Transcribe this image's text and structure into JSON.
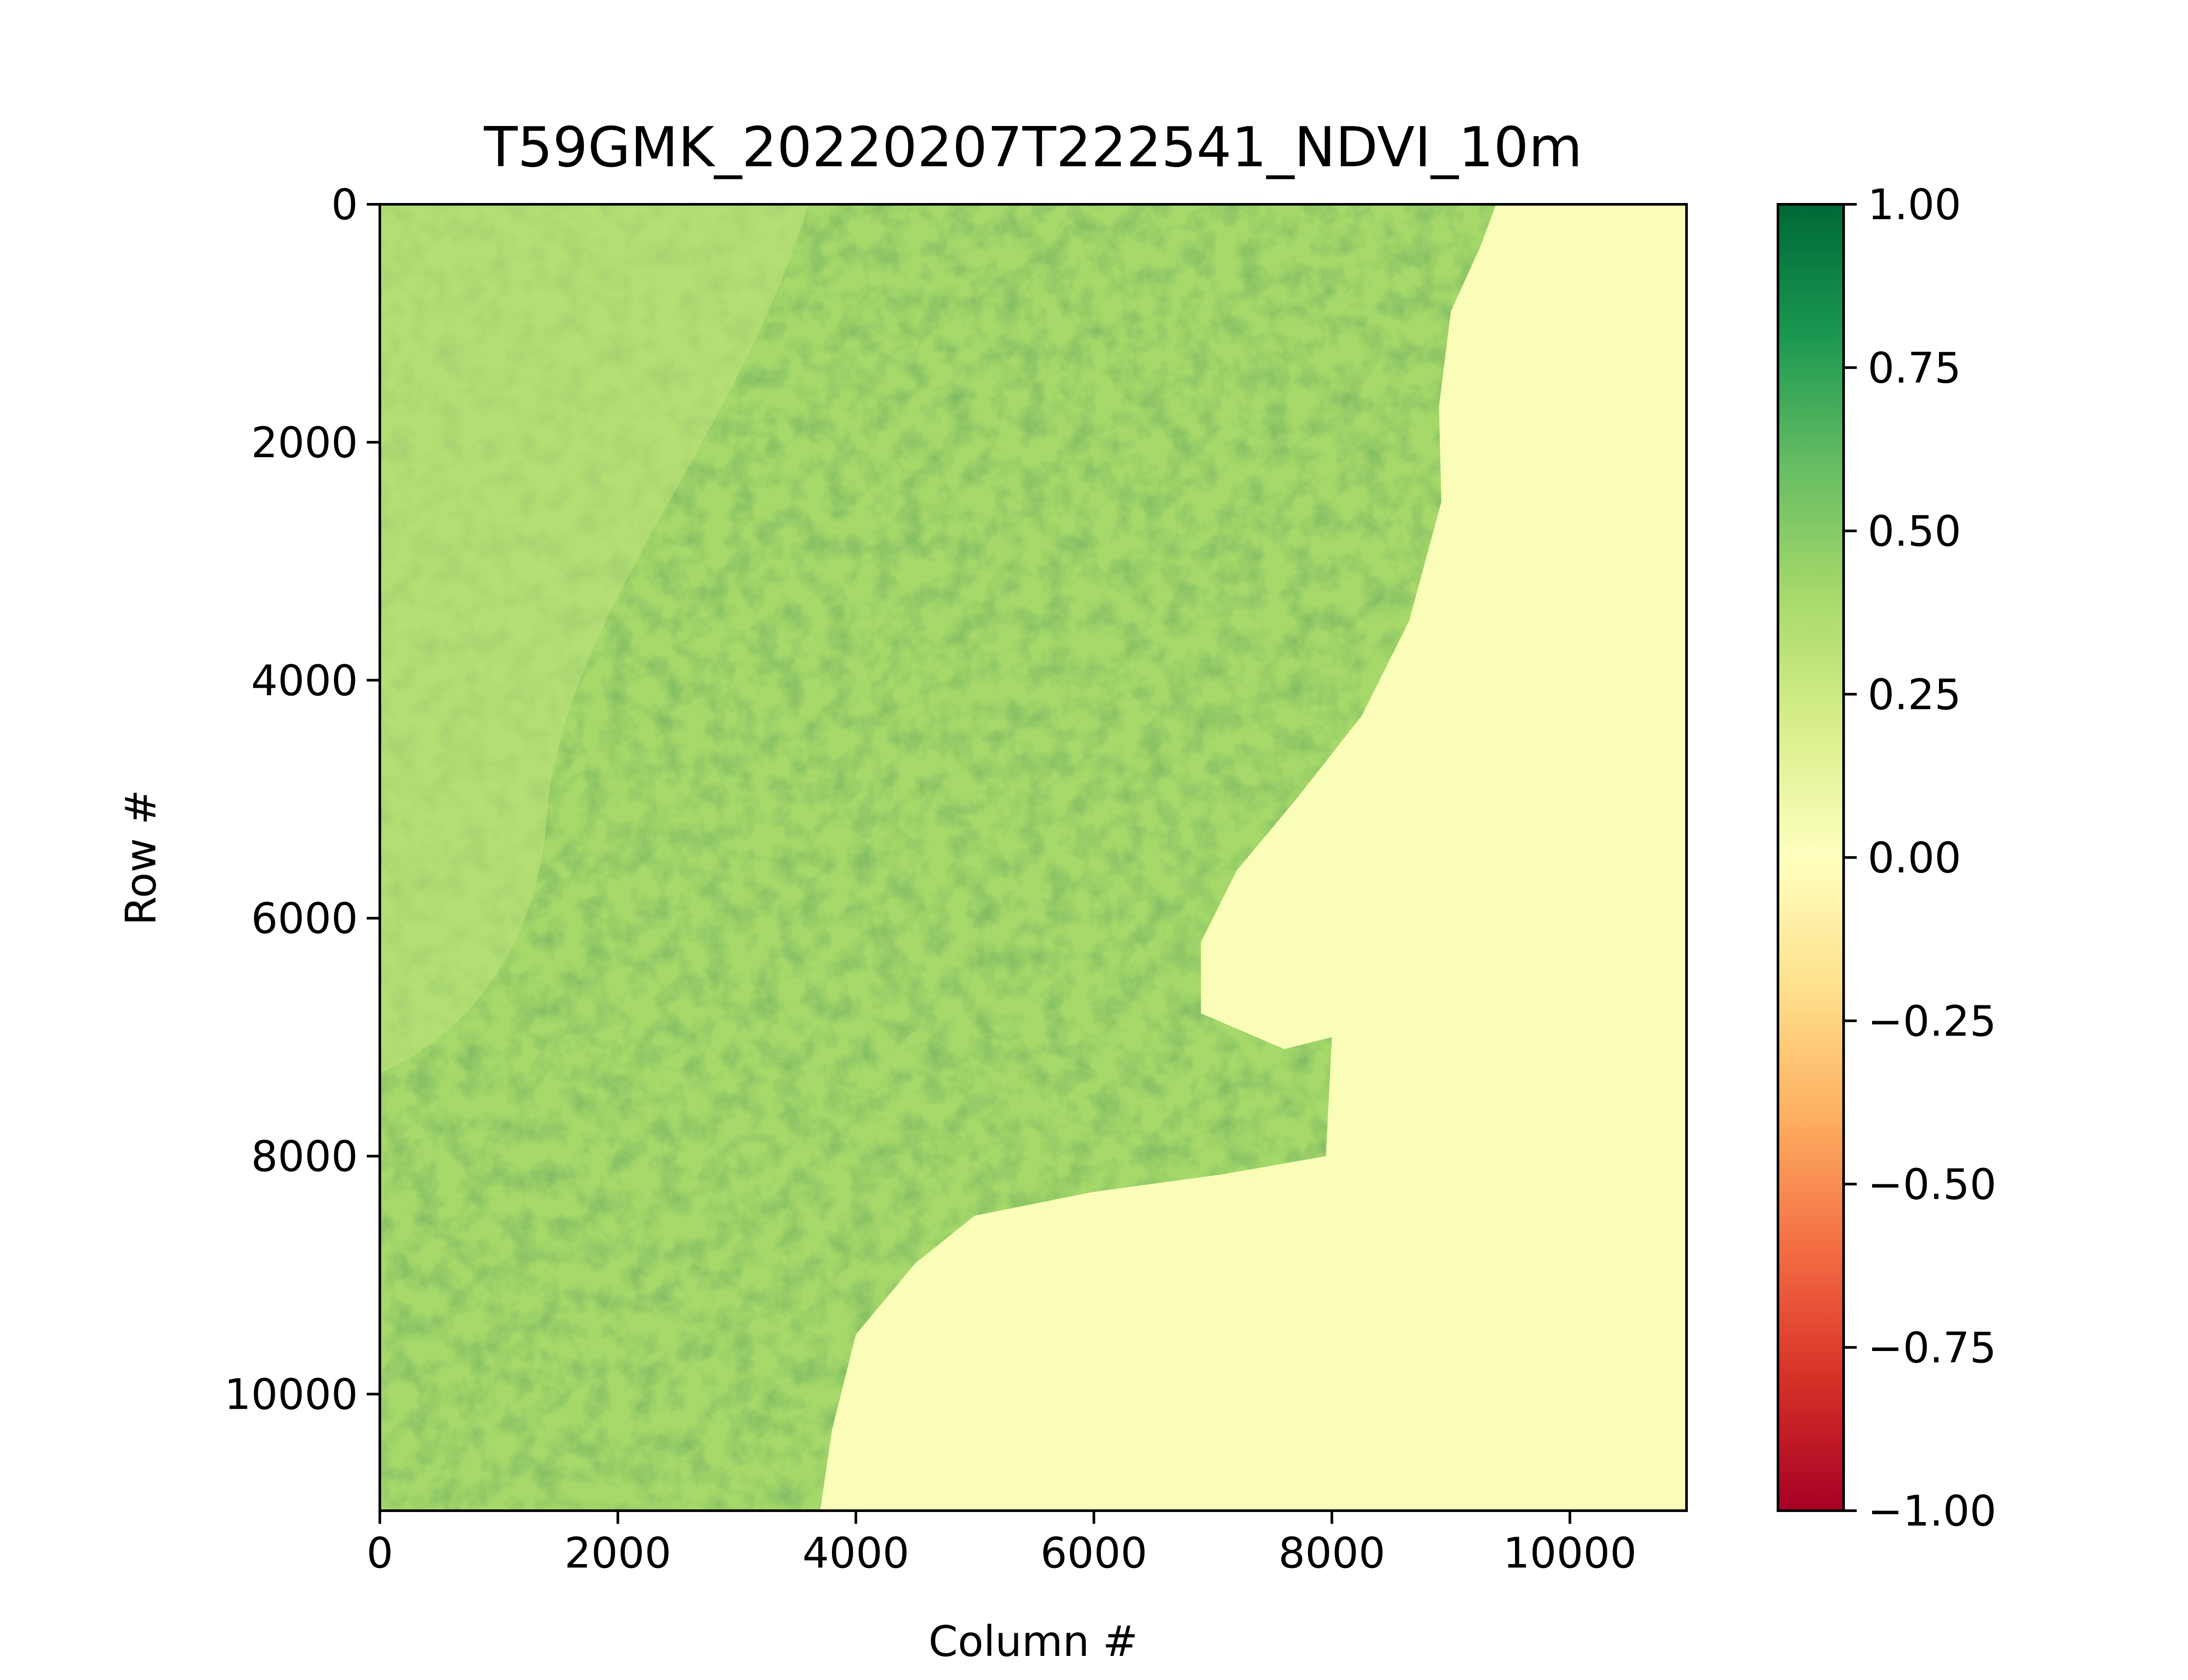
{
  "chart_data": {
    "type": "heatmap",
    "title": "T59GMK_20220207T222541_NDVI_10m",
    "xlabel": "Column #",
    "ylabel": "Row #",
    "xlim": [
      0,
      10980
    ],
    "ylim": [
      10980,
      0
    ],
    "x_ticks": [
      0,
      2000,
      4000,
      6000,
      8000,
      10000
    ],
    "x_tick_labels": [
      "0",
      "2000",
      "4000",
      "6000",
      "8000",
      "10000"
    ],
    "y_ticks": [
      0,
      2000,
      4000,
      6000,
      8000,
      10000
    ],
    "y_tick_labels": [
      "0",
      "2000",
      "4000",
      "6000",
      "8000",
      "10000"
    ],
    "grid": false,
    "colormap": "RdYlGn",
    "colorbar": {
      "vmin": -1.0,
      "vmax": 1.0,
      "ticks": [
        -1.0,
        -0.75,
        -0.5,
        -0.25,
        0.0,
        0.25,
        0.5,
        0.75,
        1.0
      ],
      "tick_labels": [
        "−1.00",
        "−0.75",
        "−0.50",
        "−0.25",
        "0.00",
        "0.25",
        "0.50",
        "0.75",
        "1.00"
      ],
      "colors": [
        "#a50026",
        "#d73027",
        "#f46d43",
        "#fdae61",
        "#fee08b",
        "#ffffbf",
        "#d9ef8b",
        "#a6d96a",
        "#66bd63",
        "#1a9850",
        "#006837"
      ]
    },
    "coastline": [
      [
        9380,
        0
      ],
      [
        9250,
        350
      ],
      [
        9000,
        900
      ],
      [
        8900,
        1700
      ],
      [
        8920,
        2500
      ],
      [
        8650,
        3500
      ],
      [
        8250,
        4300
      ],
      [
        7700,
        5000
      ],
      [
        7200,
        5600
      ],
      [
        6900,
        6200
      ],
      [
        6900,
        6800
      ],
      [
        7600,
        7100
      ],
      [
        8000,
        7000
      ],
      [
        7950,
        8000
      ],
      [
        7100,
        8150
      ],
      [
        6000,
        8300
      ],
      [
        5000,
        8500
      ],
      [
        4500,
        8900
      ],
      [
        4000,
        9500
      ],
      [
        3800,
        10300
      ],
      [
        3700,
        10980
      ]
    ],
    "regions": {
      "land_ndvi": 0.4,
      "water_ndvi": 0.03,
      "western_plateau_ndvi": 0.3
    }
  }
}
